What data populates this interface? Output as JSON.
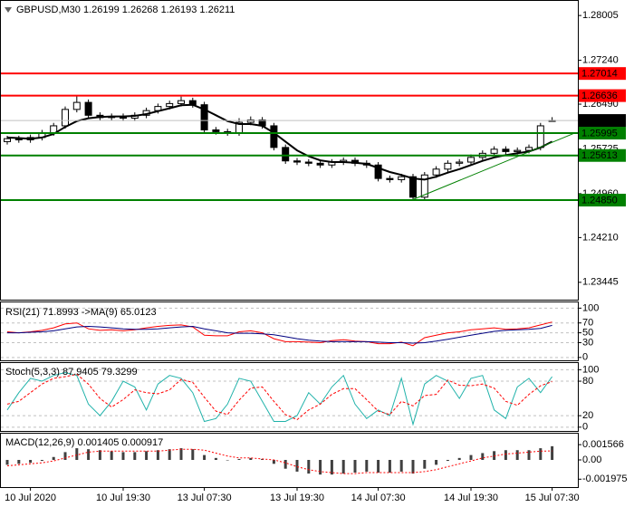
{
  "chart_data": [
    {
      "type": "candlestick",
      "title": "GBPUSD,M30  1.26199 1.26268 1.26193 1.26211",
      "categories": [
        null,
        null,
        "10 Jul 2020",
        null,
        null,
        null,
        null,
        null,
        null,
        null,
        "10 Jul 19:30",
        null,
        null,
        null,
        null,
        null,
        null,
        "13 Jul 07:30",
        null,
        null,
        null,
        null,
        null,
        null,
        null,
        "13 Jul 19:30",
        null,
        null,
        null,
        null,
        null,
        null,
        "14 Jul 07:30",
        null,
        null,
        null,
        null,
        null,
        null,
        null,
        "14 Jul 19:30",
        null,
        null,
        null,
        null,
        null,
        null,
        "15 Jul 07:30"
      ],
      "open": [
        1.2585,
        1.259,
        1.2588,
        1.2592,
        1.26,
        1.2612,
        1.264,
        1.2652,
        1.263,
        1.2626,
        1.2628,
        1.2625,
        1.263,
        1.2638,
        1.2645,
        1.265,
        1.2655,
        1.2648,
        1.2605,
        1.2602,
        1.26,
        1.2618,
        1.2622,
        1.2612,
        1.2575,
        1.2552,
        1.255,
        1.2548,
        1.2545,
        1.255,
        1.2553,
        1.2548,
        1.2545,
        1.2522,
        1.252,
        1.2525,
        1.249,
        1.2528,
        1.2538,
        1.2548,
        1.255,
        1.2558,
        1.2565,
        1.2572,
        1.2568,
        1.257,
        1.2575,
        1.26199
      ],
      "high": [
        1.2595,
        1.2595,
        1.2597,
        1.2605,
        1.2617,
        1.2645,
        1.2663,
        1.2657,
        1.2635,
        1.2633,
        1.2633,
        1.2635,
        1.2643,
        1.265,
        1.2655,
        1.2662,
        1.266,
        1.2653,
        1.261,
        1.2607,
        1.2625,
        1.2628,
        1.2627,
        1.2617,
        1.258,
        1.2557,
        1.2555,
        1.2553,
        1.2555,
        1.2558,
        1.2558,
        1.2553,
        1.255,
        1.2527,
        1.253,
        1.253,
        1.2533,
        1.2543,
        1.2553,
        1.2555,
        1.2563,
        1.257,
        1.2577,
        1.2577,
        1.2575,
        1.258,
        1.2617,
        1.26268
      ],
      "low": [
        1.258,
        1.2583,
        1.2583,
        1.2587,
        1.2595,
        1.2607,
        1.2635,
        1.2625,
        1.2621,
        1.2621,
        1.262,
        1.262,
        1.2625,
        1.2633,
        1.264,
        1.2645,
        1.2643,
        1.2598,
        1.2597,
        1.2595,
        1.2595,
        1.2613,
        1.2607,
        1.257,
        1.2547,
        1.2545,
        1.2543,
        1.254,
        1.254,
        1.2545,
        1.2543,
        1.254,
        1.2517,
        1.2515,
        1.2515,
        1.2485,
        1.2485,
        1.2523,
        1.2533,
        1.2543,
        1.2545,
        1.2553,
        1.256,
        1.2563,
        1.2563,
        1.2565,
        1.257,
        1.26193
      ],
      "close": [
        1.259,
        1.2588,
        1.2592,
        1.26,
        1.2612,
        1.264,
        1.2652,
        1.263,
        1.2626,
        1.2628,
        1.2625,
        1.263,
        1.2638,
        1.2645,
        1.265,
        1.2655,
        1.2648,
        1.2605,
        1.2602,
        1.26,
        1.2618,
        1.2622,
        1.2612,
        1.2575,
        1.2552,
        1.255,
        1.2548,
        1.2545,
        1.255,
        1.2553,
        1.2548,
        1.2545,
        1.2522,
        1.252,
        1.2525,
        1.249,
        1.2528,
        1.2538,
        1.2548,
        1.255,
        1.2558,
        1.2565,
        1.2572,
        1.2568,
        1.257,
        1.2575,
        1.2612,
        1.26211
      ],
      "up_color": "#ffffff",
      "down_color": "#000000",
      "ma": {
        "color": "#000000",
        "values": [
          1.2592,
          1.2591,
          1.259,
          1.2592,
          1.2598,
          1.261,
          1.262,
          1.2625,
          1.2627,
          1.2628,
          1.2628,
          1.2629,
          1.2632,
          1.2637,
          1.2642,
          1.2647,
          1.2648,
          1.264,
          1.263,
          1.262,
          1.2615,
          1.2615,
          1.2612,
          1.26,
          1.2585,
          1.257,
          1.256,
          1.2553,
          1.255,
          1.255,
          1.2549,
          1.2547,
          1.254,
          1.2533,
          1.2528,
          1.2522,
          1.252,
          1.2525,
          1.2532,
          1.2538,
          1.2545,
          1.2552,
          1.2558,
          1.2562,
          1.2565,
          1.2568,
          1.2575,
          1.2585
        ]
      },
      "ylim": [
        1.23164,
        1.2827
      ],
      "yticks": [
        1.28005,
        {
          "value": 1.2724,
          "label": "1.27240"
        },
        {
          "value": 1.2649,
          "label": "1.26490"
        },
        1.25725,
        {
          "value": 1.2496,
          "label": "1.24960"
        },
        {
          "value": 1.2421,
          "label": "1.24210"
        },
        1.23445
      ],
      "levels": [
        {
          "value": 1.27014,
          "color": "#ff0000"
        },
        {
          "value": 1.26636,
          "color": "#ff0000"
        },
        {
          "value": 1.25995,
          "color": "#008000"
        },
        {
          "value": 1.25613,
          "color": "#008000"
        },
        {
          "value": 1.2485,
          "label": "1.24850",
          "color": "#008000"
        }
      ],
      "last_price": {
        "value": 1.26211,
        "color": "#c0c0c0"
      },
      "trend_line": {
        "color": "#008000",
        "x": [
          35,
          49
        ],
        "y": [
          1.2486,
          1.26
        ]
      }
    },
    {
      "type": "line",
      "title": "RSI(21) 71.8993  ->MA(9) 65.0123",
      "ylim": [
        -4,
        108
      ],
      "yticks": [
        100,
        70,
        50,
        30,
        0
      ],
      "grid": true,
      "series": [
        {
          "color": "#ff0000",
          "values": [
            52,
            50,
            52,
            55,
            60,
            68,
            70,
            58,
            55,
            56,
            54,
            56,
            60,
            63,
            65,
            66,
            62,
            45,
            44,
            44,
            52,
            54,
            50,
            38,
            32,
            32,
            31,
            30,
            34,
            36,
            33,
            32,
            28,
            28,
            31,
            24,
            40,
            45,
            50,
            52,
            56,
            58,
            60,
            57,
            58,
            60,
            66,
            71.8993
          ]
        },
        {
          "color": "#000080",
          "values": [
            50,
            50,
            51,
            52,
            54,
            58,
            62,
            63,
            62,
            60,
            58,
            57,
            57,
            58,
            60,
            62,
            63,
            58,
            54,
            50,
            49,
            49,
            48,
            46,
            42,
            38,
            35,
            33,
            32,
            32,
            32,
            32,
            31,
            30,
            30,
            29,
            30,
            33,
            37,
            41,
            45,
            49,
            53,
            55,
            56,
            57,
            59,
            65.0123
          ]
        }
      ]
    },
    {
      "type": "line",
      "title": "Stoch(5,3,3) 87.9405 79.3299",
      "ylim": [
        -5,
        110
      ],
      "yticks": [
        100,
        80,
        20,
        0
      ],
      "grid": true,
      "series": [
        {
          "color": "#20b2aa",
          "values": [
            30,
            60,
            85,
            80,
            90,
            95,
            90,
            40,
            20,
            45,
            80,
            70,
            30,
            75,
            90,
            85,
            60,
            10,
            15,
            40,
            85,
            80,
            45,
            10,
            10,
            20,
            60,
            40,
            70,
            90,
            40,
            15,
            30,
            20,
            85,
            5,
            75,
            90,
            80,
            50,
            85,
            90,
            30,
            15,
            70,
            85,
            60,
            87.9405
          ]
        },
        {
          "color": "#ff0000",
          "dash": true,
          "values": [
            40,
            45,
            60,
            75,
            85,
            88,
            92,
            75,
            50,
            35,
            48,
            65,
            60,
            58,
            65,
            83,
            78,
            52,
            28,
            22,
            47,
            68,
            70,
            45,
            22,
            13,
            30,
            40,
            57,
            67,
            67,
            48,
            28,
            22,
            45,
            37,
            55,
            57,
            82,
            73,
            72,
            75,
            68,
            45,
            38,
            57,
            72,
            79.3299
          ]
        }
      ]
    },
    {
      "type": "macd",
      "title": "MACD(12,26,9) 0.001405 0.000917",
      "ylim": [
        -0.0026,
        0.0026
      ],
      "yticks": [
        0.001566,
        {
          "value": 0,
          "label": "0.00"
        },
        -0.001975
      ],
      "series": [
        {
          "color": "#404040",
          "values": [
            -0.0005,
            -0.0004,
            -0.0003,
            -0.0001,
            0.0003,
            0.0008,
            0.0012,
            0.0011,
            0.001,
            0.0009,
            0.0008,
            0.0008,
            0.0009,
            0.001,
            0.0011,
            0.0012,
            0.0011,
            0.0005,
            0.0002,
            0.0,
            0.0001,
            0.0002,
            0.0001,
            -0.0004,
            -0.0009,
            -0.0012,
            -0.0014,
            -0.0015,
            -0.0015,
            -0.0014,
            -0.0013,
            -0.0012,
            -0.0013,
            -0.0013,
            -0.0012,
            -0.0014,
            -0.0009,
            -0.0005,
            -0.0001,
            0.0002,
            0.0005,
            0.0007,
            0.0009,
            0.001,
            0.001,
            0.001,
            0.0012,
            0.001405
          ]
        },
        {
          "color": "#ff0000",
          "dash": true,
          "values": [
            -0.0006,
            -0.0005,
            -0.0004,
            -0.0003,
            -0.0001,
            0.0002,
            0.0005,
            0.0008,
            0.0009,
            0.0009,
            0.0009,
            0.0009,
            0.0009,
            0.0009,
            0.001,
            0.0011,
            0.0011,
            0.001,
            0.0007,
            0.0004,
            0.0002,
            0.0002,
            0.0001,
            0.0,
            -0.0003,
            -0.0007,
            -0.001,
            -0.0012,
            -0.0013,
            -0.0014,
            -0.0014,
            -0.0013,
            -0.0013,
            -0.0013,
            -0.0013,
            -0.0013,
            -0.0012,
            -0.001,
            -0.0007,
            -0.0004,
            -0.0001,
            0.0002,
            0.0004,
            0.0006,
            0.0007,
            0.0008,
            0.0009,
            0.000917
          ]
        }
      ]
    }
  ]
}
